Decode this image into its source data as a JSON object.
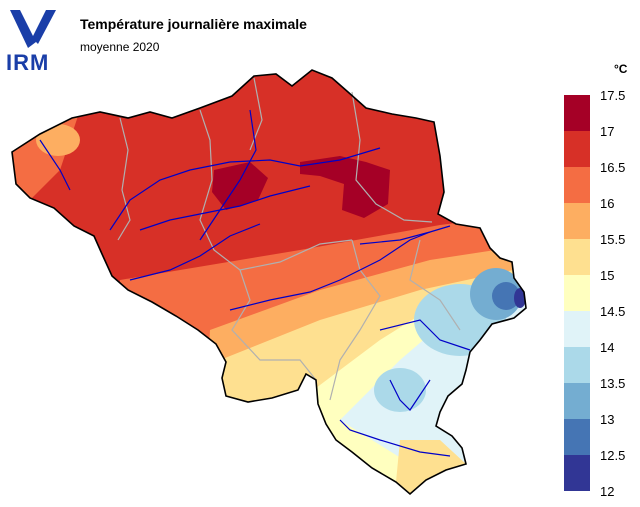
{
  "logo": {
    "text": "IRM",
    "color": "#1a3ea8"
  },
  "title": "Température journalière maximale",
  "subtitle": "moyenne 2020",
  "legend": {
    "unit": "°C",
    "labels": [
      "17.5",
      "17",
      "16.5",
      "16",
      "15.5",
      "15",
      "14.5",
      "14",
      "13.5",
      "13",
      "12.5",
      "12"
    ],
    "colors": [
      "#a50026",
      "#d73027",
      "#f46d43",
      "#fdae61",
      "#fee090",
      "#ffffbf",
      "#e0f3f8",
      "#abd9e9",
      "#74add1",
      "#4575b4",
      "#313695"
    ]
  }
}
